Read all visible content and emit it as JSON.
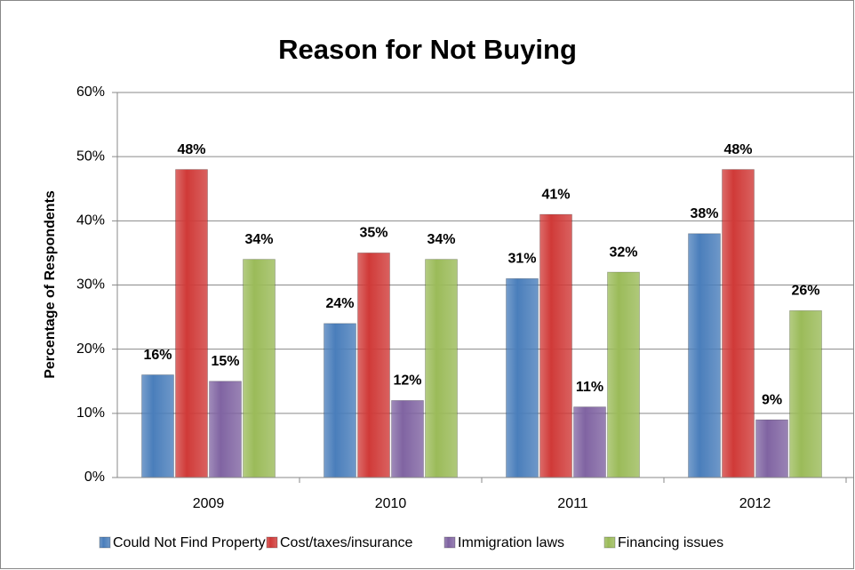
{
  "chart_data": {
    "type": "bar",
    "title": "Reason for Not Buying",
    "y_label": "Percentage of Respondents",
    "categories": [
      "2009",
      "2010",
      "2011",
      "2012"
    ],
    "series": [
      {
        "name": "Could Not Find Property",
        "color": "#4a7ebb",
        "values": [
          16,
          24,
          31,
          38
        ],
        "value_labels": [
          "16%",
          "24%",
          "31%",
          "38%"
        ]
      },
      {
        "name": "Cost/taxes/insurance",
        "color": "#d03a38",
        "values": [
          48,
          35,
          41,
          48
        ],
        "value_labels": [
          "48%",
          "35%",
          "41%",
          "48%"
        ]
      },
      {
        "name": "Immigration laws",
        "color": "#8064a2",
        "values": [
          15,
          12,
          11,
          9
        ],
        "value_labels": [
          "15%",
          "12%",
          "11%",
          "9%"
        ]
      },
      {
        "name": "Financing issues",
        "color": "#9bbb59",
        "values": [
          34,
          34,
          32,
          26
        ],
        "value_labels": [
          "34%",
          "34%",
          "32%",
          "26%"
        ]
      }
    ],
    "ylim": [
      0,
      60
    ],
    "yticks": [
      {
        "value": 0,
        "label": "0%"
      },
      {
        "value": 10,
        "label": "10%"
      },
      {
        "value": 20,
        "label": "20%"
      },
      {
        "value": 30,
        "label": "30%"
      },
      {
        "value": 40,
        "label": "40%"
      },
      {
        "value": 50,
        "label": "50%"
      },
      {
        "value": 60,
        "label": "60%"
      }
    ],
    "grid": true,
    "legend": "bottom"
  }
}
